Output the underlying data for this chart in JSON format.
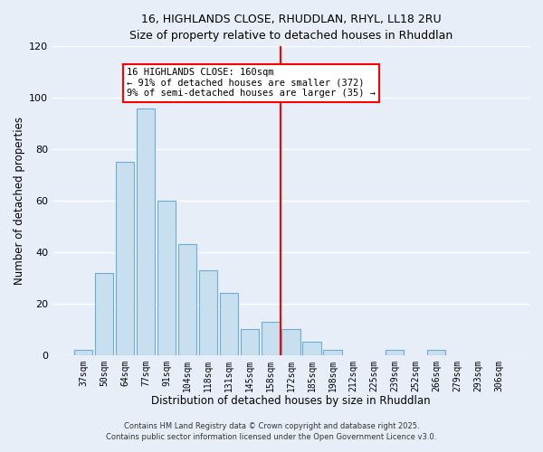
{
  "title": "16, HIGHLANDS CLOSE, RHUDDLAN, RHYL, LL18 2RU",
  "subtitle": "Size of property relative to detached houses in Rhuddlan",
  "xlabel": "Distribution of detached houses by size in Rhuddlan",
  "ylabel": "Number of detached properties",
  "bar_labels": [
    "37sqm",
    "50sqm",
    "64sqm",
    "77sqm",
    "91sqm",
    "104sqm",
    "118sqm",
    "131sqm",
    "145sqm",
    "158sqm",
    "172sqm",
    "185sqm",
    "198sqm",
    "212sqm",
    "225sqm",
    "239sqm",
    "252sqm",
    "266sqm",
    "279sqm",
    "293sqm",
    "306sqm"
  ],
  "bar_values": [
    2,
    32,
    75,
    96,
    60,
    43,
    33,
    24,
    10,
    13,
    10,
    5,
    2,
    0,
    0,
    2,
    0,
    2,
    0,
    0,
    0
  ],
  "bar_color": "#c8dff0",
  "bar_edge_color": "#6aaed6",
  "ylim": [
    0,
    120
  ],
  "yticks": [
    0,
    20,
    40,
    60,
    80,
    100,
    120
  ],
  "vline_x": 9.5,
  "vline_color": "red",
  "annotation_title": "16 HIGHLANDS CLOSE: 160sqm",
  "annotation_line1": "← 91% of detached houses are smaller (372)",
  "annotation_line2": "9% of semi-detached houses are larger (35) →",
  "footer_line1": "Contains HM Land Registry data © Crown copyright and database right 2025.",
  "footer_line2": "Contains public sector information licensed under the Open Government Licence v3.0.",
  "background_color": "#e8eef8",
  "grid_color": "#ffffff"
}
